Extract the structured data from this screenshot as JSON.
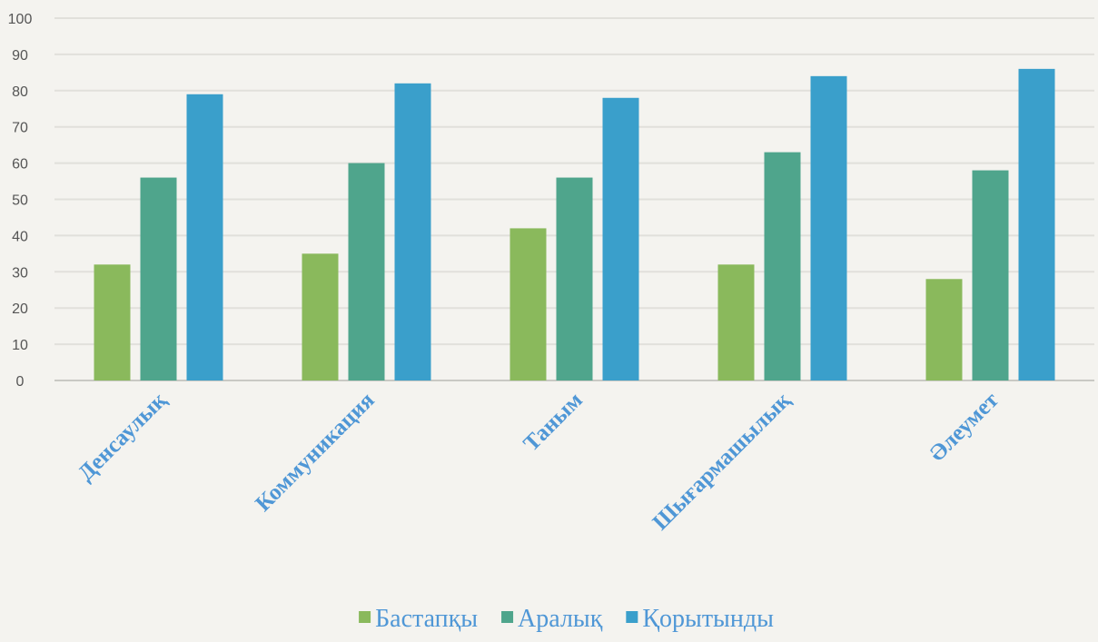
{
  "chart_data": {
    "type": "bar",
    "categories": [
      "Денсаулық",
      "Коммуникация",
      "Таным",
      "Шығармашылық",
      "Әлеумет"
    ],
    "series": [
      {
        "name": "Бастапқы",
        "values": [
          32,
          35,
          42,
          32,
          28
        ],
        "color": "#8ab95c"
      },
      {
        "name": "Аралық",
        "values": [
          56,
          60,
          56,
          63,
          58
        ],
        "color": "#4fa58c"
      },
      {
        "name": "Қорытынды",
        "values": [
          79,
          82,
          78,
          84,
          86
        ],
        "color": "#3a9fcb"
      }
    ],
    "ylim": [
      0,
      100
    ],
    "yticks": [
      "0",
      "10",
      "20",
      "30",
      "40",
      "50",
      "60",
      "70",
      "80",
      "90",
      "100"
    ],
    "grid": true,
    "legend_position": "bottom",
    "label_color": "#4f97d6"
  }
}
